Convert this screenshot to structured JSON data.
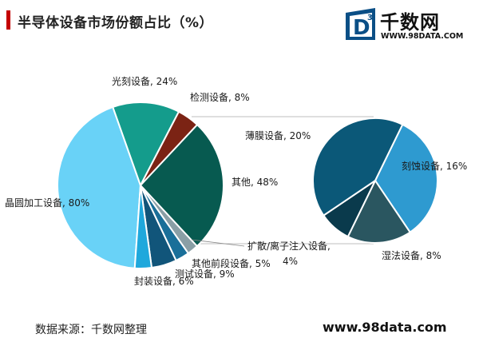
{
  "header": {
    "title": "半导体设备市场份额占比（%）"
  },
  "brand": {
    "logo_letter": "D",
    "logo_superscript": "3",
    "name": "千数网",
    "url_small": "WWW.98DATA.COM"
  },
  "footer": {
    "source": "数据来源：千数网整理",
    "url": "www.98data.com"
  },
  "colors": {
    "title_accent": "#c40000",
    "connector_line": "#bfbfbf"
  },
  "chart_data": [
    {
      "type": "pie",
      "title": "",
      "slices": [
        {
          "label": "晶圆加工设备, 80%",
          "value": 80,
          "color": "#69d2f7"
        },
        {
          "label": "光刻设备, 24%",
          "value": 24,
          "color": "#149c8c"
        },
        {
          "label": "检测设备, 8%",
          "value": 8,
          "color": "#7b2314"
        },
        {
          "label": "其他, 48%",
          "value": 48,
          "color": "#075a50"
        },
        {
          "label": "扩散/离子注入设备, 4%",
          "value": 4,
          "color": "#8a9fa6"
        },
        {
          "label": "其他前段设备, 5%",
          "value": 5,
          "color": "#1a6f99"
        },
        {
          "label": "测试设备, 9%",
          "value": 9,
          "color": "#11557a"
        },
        {
          "label": "封装设备, 6%",
          "value": 6,
          "color": "#1fa8dc"
        }
      ]
    },
    {
      "type": "pie",
      "title": "",
      "slices": [
        {
          "label": "刻蚀设备, 16%",
          "value": 16,
          "color": "#2e9ad0"
        },
        {
          "label": "湿法设备, 8%",
          "value": 8,
          "color": "#2a5660"
        },
        {
          "label": "",
          "value": 4,
          "color": "#0a3a4c"
        },
        {
          "label": "薄膜设备, 20%",
          "value": 20,
          "color": "#0b5878"
        }
      ]
    }
  ]
}
